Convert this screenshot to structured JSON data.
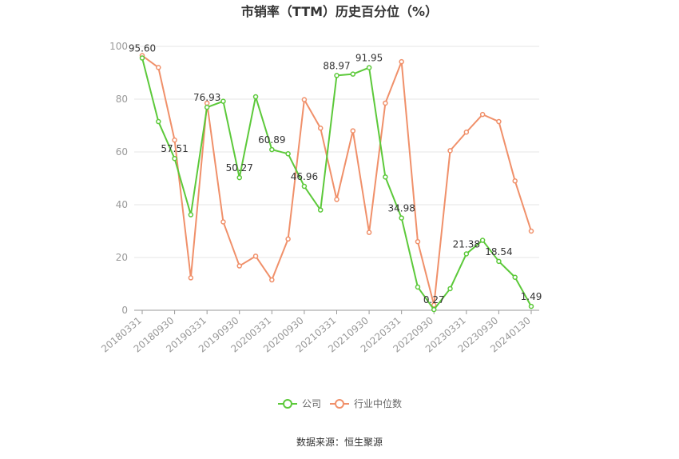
{
  "chart_data": {
    "type": "line",
    "title": "市销率（TTM）历史百分位（%）",
    "source": "数据来源：恒生聚源",
    "ylim": [
      0,
      100
    ],
    "yticks": [
      0,
      20,
      40,
      60,
      80,
      100
    ],
    "xtick_labels": [
      "20180331",
      "20180930",
      "20190331",
      "20190930",
      "20200331",
      "20200930",
      "20210331",
      "20210930",
      "20220331",
      "20220930",
      "20230331",
      "20230930",
      "20240130"
    ],
    "point_count": 25,
    "legend_position": "bottom",
    "grid": true,
    "colors": {
      "company": "#5cc93a",
      "industry": "#f0906a"
    },
    "series": [
      {
        "name": "公司",
        "values": [
          95.6,
          71.5,
          57.51,
          36.2,
          76.93,
          79.2,
          50.27,
          80.9,
          60.89,
          59.3,
          46.96,
          38.0,
          88.97,
          89.5,
          91.95,
          50.5,
          34.98,
          8.8,
          0.27,
          8.2,
          21.38,
          26.5,
          18.54,
          12.5,
          1.49
        ],
        "labels": [
          "95.60",
          "",
          "57.51",
          "",
          "76.93",
          "",
          "50.27",
          "",
          "60.89",
          "",
          "46.96",
          "",
          "88.97",
          "",
          "91.95",
          "",
          "34.98",
          "",
          "0.27",
          "",
          "21.38",
          "",
          "18.54",
          "",
          "1.49"
        ]
      },
      {
        "name": "行业中位数",
        "values": [
          96.5,
          92.0,
          64.5,
          12.3,
          78.5,
          33.5,
          16.8,
          20.5,
          11.5,
          27.0,
          79.8,
          69.0,
          42.0,
          68.0,
          29.5,
          78.5,
          94.2,
          26.0,
          2.0,
          60.5,
          67.5,
          74.2,
          71.5,
          49.0,
          30.0
        ]
      }
    ]
  }
}
